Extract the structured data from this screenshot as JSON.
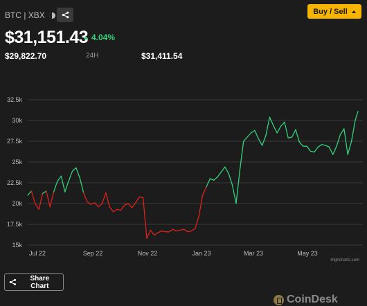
{
  "header": {
    "pair_label": "BTC | XBX",
    "theme_icon": "half-moon-icon",
    "share_icon": "share-icon",
    "buy_sell_label": "Buy / Sell",
    "price": "$31,151.43",
    "change": "4.04%",
    "low": "$29,822.70",
    "range_label": "24H",
    "high": "$31,411.54"
  },
  "colors": {
    "up": "#33d17a",
    "down": "#e0221c",
    "accent": "#f7b500"
  },
  "chart_data": {
    "type": "line",
    "y_ticks": [
      "32.5k",
      "30k",
      "27.5k",
      "25k",
      "22.5k",
      "20k",
      "17.5k",
      "15k"
    ],
    "x_ticks": [
      "Jul 22",
      "Sep 22",
      "Nov 22",
      "Jan 23",
      "Mar 23",
      "May 23"
    ],
    "ylim": [
      15000,
      32500
    ],
    "xlim": [
      0,
      355
    ],
    "credit": "Highcharts.com",
    "x": [
      0,
      4,
      8,
      12,
      16,
      20,
      24,
      28,
      32,
      36,
      40,
      44,
      48,
      52,
      56,
      60,
      64,
      68,
      72,
      76,
      80,
      84,
      88,
      92,
      96,
      100,
      104,
      108,
      112,
      116,
      120,
      124,
      128,
      132,
      136,
      140,
      144,
      148,
      152,
      156,
      160,
      164,
      168,
      172,
      176,
      180,
      184,
      188,
      192,
      196,
      200,
      204,
      208,
      212,
      216,
      220,
      224,
      228,
      232,
      236,
      240,
      244,
      248,
      252,
      256,
      260,
      264,
      268,
      272,
      276,
      280,
      284,
      288,
      292,
      296,
      300,
      304,
      308,
      312,
      316,
      320,
      324,
      328,
      332,
      336,
      340,
      344,
      348,
      352,
      355
    ],
    "y": [
      21000,
      21500,
      20000,
      19300,
      21200,
      21500,
      19600,
      21400,
      22700,
      23300,
      21400,
      22700,
      23900,
      24300,
      23100,
      21300,
      20200,
      19900,
      20100,
      19600,
      20000,
      21300,
      19600,
      19000,
      19300,
      19200,
      19800,
      20000,
      19500,
      20100,
      20800,
      20700,
      15800,
      16800,
      16200,
      16500,
      16700,
      16600,
      16600,
      16900,
      16700,
      16800,
      16900,
      16600,
      16700,
      17000,
      18500,
      21000,
      22000,
      23000,
      22800,
      23200,
      23800,
      24400,
      23600,
      22200,
      20000,
      24000,
      27500,
      28000,
      28500,
      28800,
      27800,
      27000,
      28200,
      30400,
      29400,
      28500,
      29300,
      29800,
      27900,
      28000,
      28900,
      27400,
      26900,
      26900,
      26300,
      26200,
      26800,
      27100,
      27000,
      26800,
      25900,
      26900,
      28300,
      29000,
      25900,
      27500,
      30000,
      31100
    ]
  },
  "share_chart_label": "Share Chart",
  "brand": "CoinDesk"
}
